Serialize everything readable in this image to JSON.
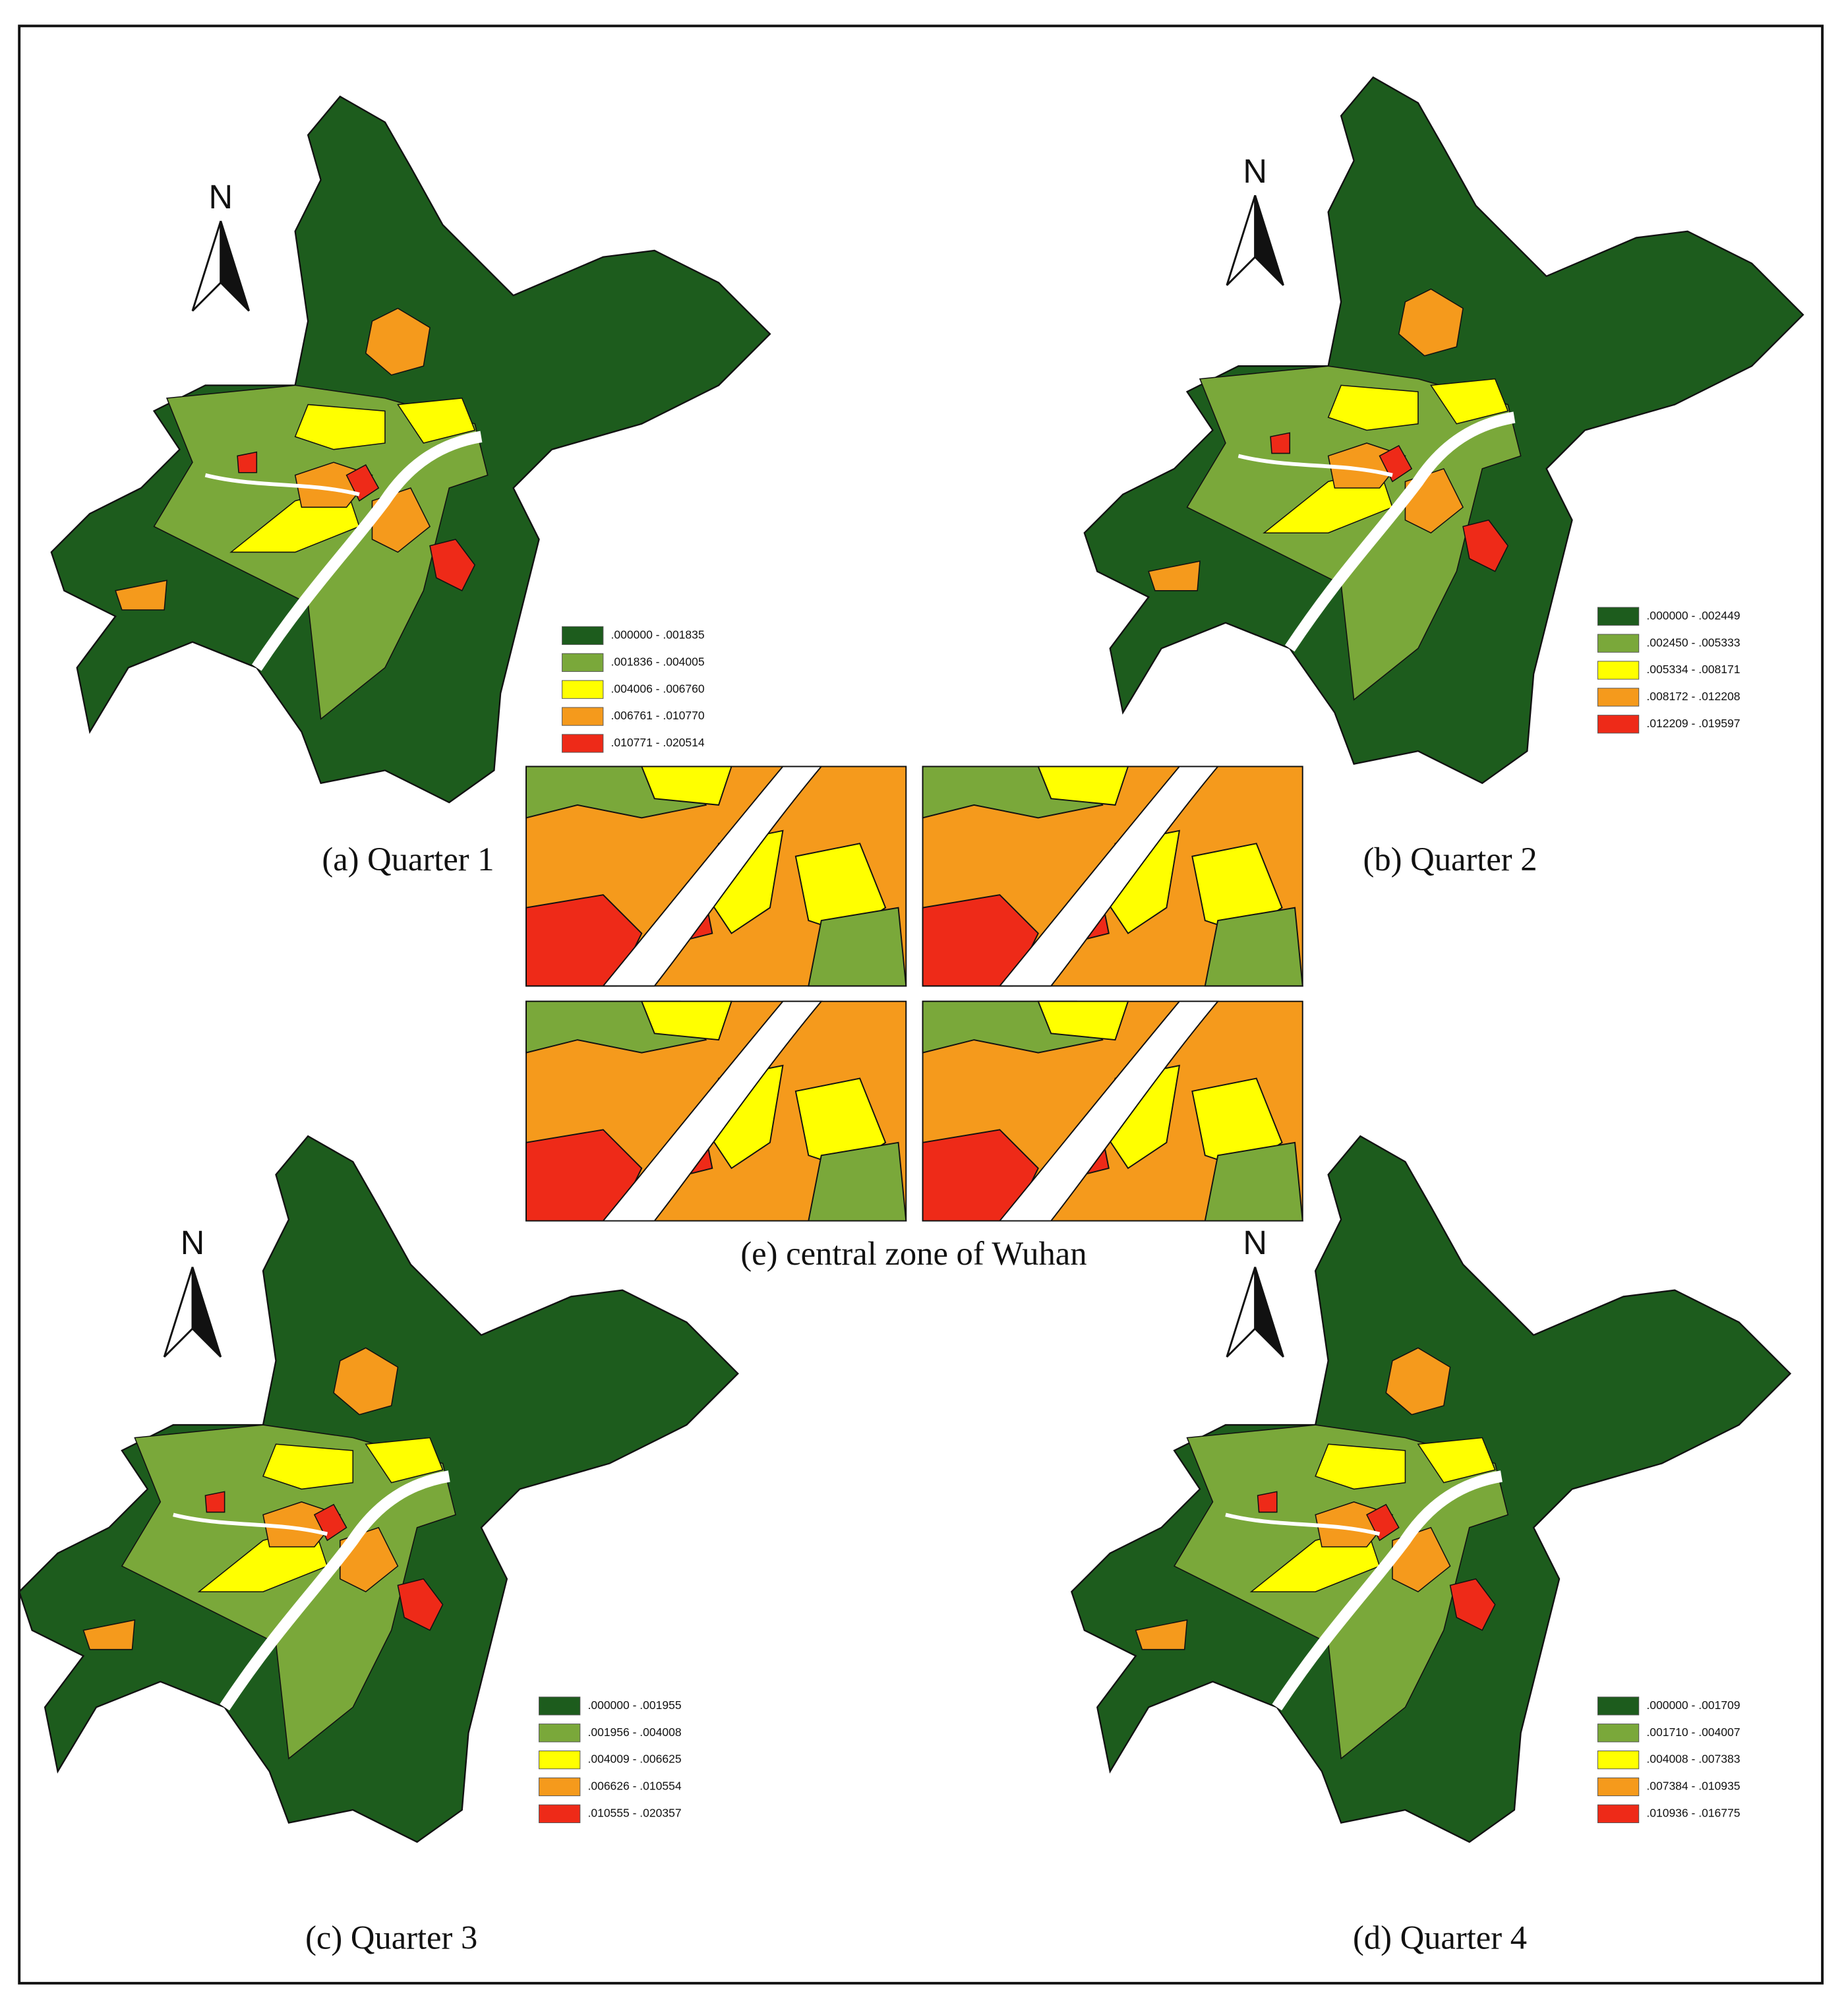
{
  "panels": [
    {
      "caption": "(a) Quarter 1",
      "north_label": "N",
      "legend": [
        {
          "label": ".000000 - .001835",
          "color": "#1d5c1d"
        },
        {
          "label": ".001836 - .004005",
          "color": "#7aa83a"
        },
        {
          "label": ".004006 - .006760",
          "color": "#ffff00"
        },
        {
          "label": ".006761 - .010770",
          "color": "#f59a1c"
        },
        {
          "label": ".010771 - .020514",
          "color": "#ee2a18"
        }
      ]
    },
    {
      "caption": "(b) Quarter 2",
      "north_label": "N",
      "legend": [
        {
          "label": ".000000 - .002449",
          "color": "#1d5c1d"
        },
        {
          "label": ".002450 - .005333",
          "color": "#7aa83a"
        },
        {
          "label": ".005334 - .008171",
          "color": "#ffff00"
        },
        {
          "label": ".008172 - .012208",
          "color": "#f59a1c"
        },
        {
          "label": ".012209 - .019597",
          "color": "#ee2a18"
        }
      ]
    },
    {
      "caption": "(c) Quarter 3",
      "north_label": "N",
      "legend": [
        {
          "label": ".000000 - .001955",
          "color": "#1d5c1d"
        },
        {
          "label": ".001956 - .004008",
          "color": "#7aa83a"
        },
        {
          "label": ".004009 - .006625",
          "color": "#ffff00"
        },
        {
          "label": ".006626 - .010554",
          "color": "#f59a1c"
        },
        {
          "label": ".010555 - .020357",
          "color": "#ee2a18"
        }
      ]
    },
    {
      "caption": "(d) Quarter 4",
      "north_label": "N",
      "legend": [
        {
          "label": ".000000 - .001709",
          "color": "#1d5c1d"
        },
        {
          "label": ".001710 - .004007",
          "color": "#7aa83a"
        },
        {
          "label": ".004008 - .007383",
          "color": "#ffff00"
        },
        {
          "label": ".007384 - .010935",
          "color": "#f59a1c"
        },
        {
          "label": ".010936 - .016775",
          "color": "#ee2a18"
        }
      ]
    }
  ],
  "central_caption": "(e) central zone of Wuhan"
}
